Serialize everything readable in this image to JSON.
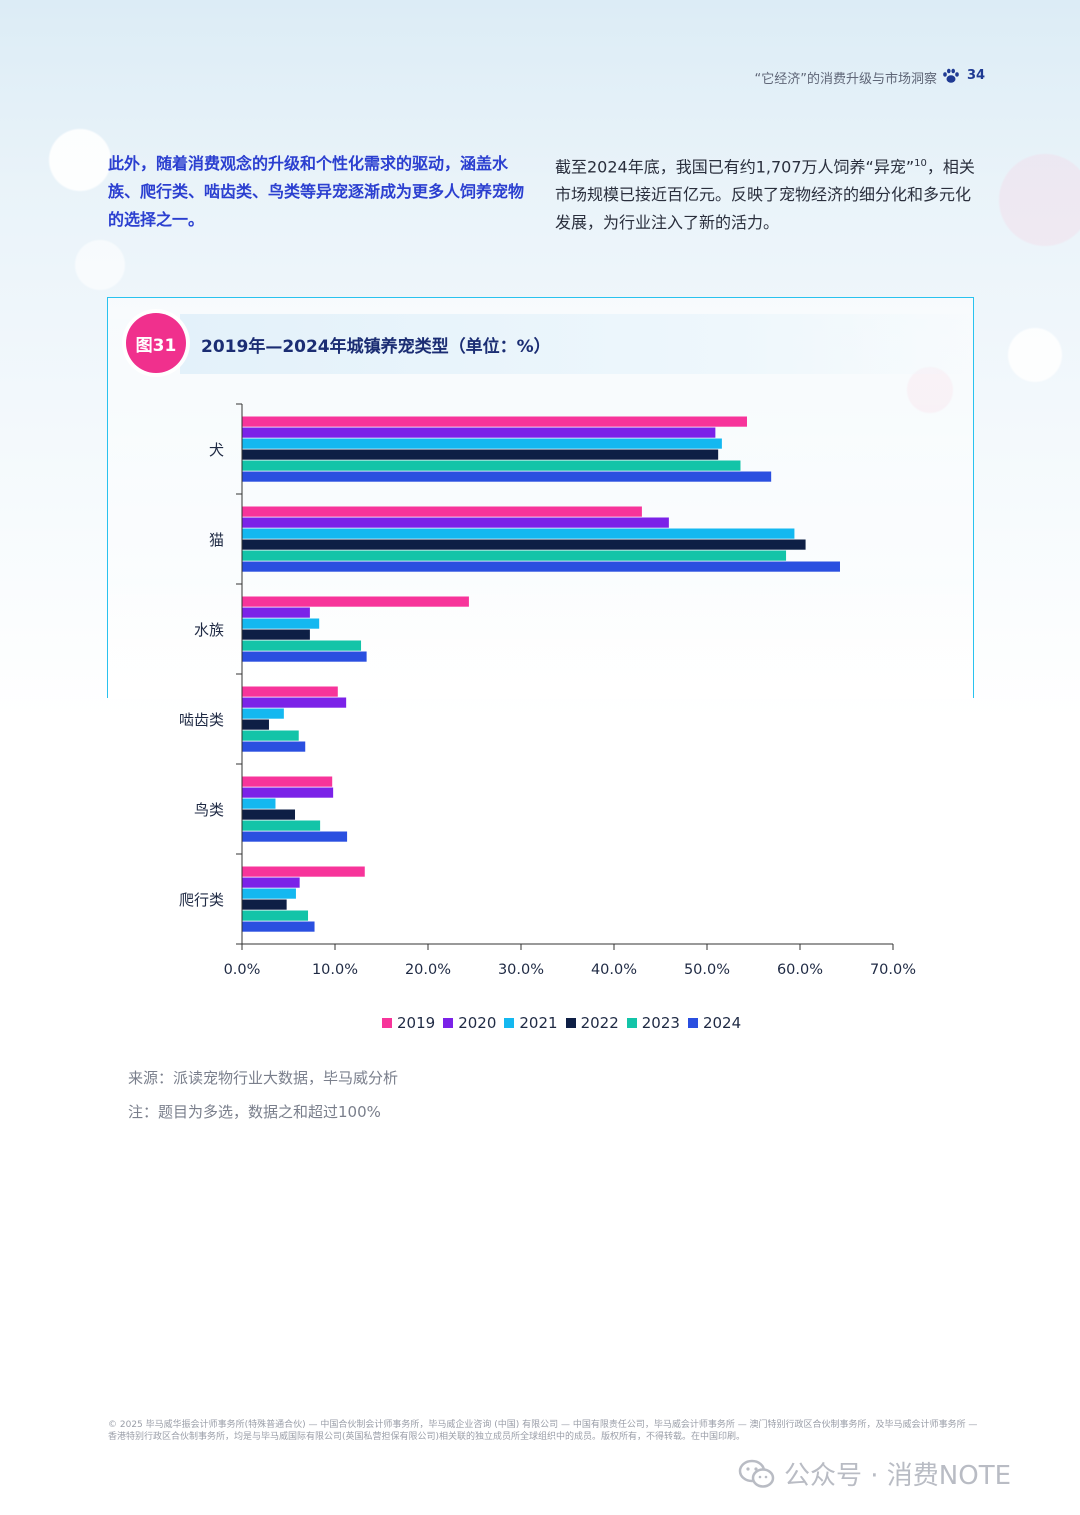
{
  "header": {
    "title": "“它经济”的消费升级与市场洞察",
    "page_number": "34"
  },
  "intro": {
    "left": "此外，随着消费观念的升级和个性化需求的驱动，涵盖水族、爬行类、啮齿类、鸟类等异宠逐渐成为更多人饲养宠物的选择之一。",
    "right_text": "截至2024年底，我国已有约1,707万人饲养“异宠”",
    "right_sup": "10",
    "right_text2": "，相关市场规模已接近百亿元。反映了宠物经济的细分化和多元化发展，为行业注入了新的活力。"
  },
  "figure": {
    "badge": "图31",
    "title": "2019年—2024年城镇养宠类型（单位：%）"
  },
  "chart_data": {
    "type": "bar",
    "orientation": "horizontal",
    "title": "2019年—2024年城镇养宠类型（单位：%）",
    "categories": [
      "犬",
      "猫",
      "水族",
      "啮齿类",
      "鸟类",
      "爬行类"
    ],
    "series": [
      {
        "name": "2019",
        "color": "#f7349a",
        "values": [
          54.3,
          43.0,
          24.4,
          10.3,
          9.7,
          13.2
        ]
      },
      {
        "name": "2020",
        "color": "#7b22e8",
        "values": [
          50.9,
          45.9,
          7.3,
          11.2,
          9.8,
          6.2
        ]
      },
      {
        "name": "2021",
        "color": "#14b8f0",
        "values": [
          51.6,
          59.4,
          8.3,
          4.5,
          3.6,
          5.8
        ]
      },
      {
        "name": "2022",
        "color": "#0e1f45",
        "values": [
          51.2,
          60.6,
          7.3,
          2.9,
          5.7,
          4.8
        ]
      },
      {
        "name": "2023",
        "color": "#13c4a8",
        "values": [
          53.6,
          58.5,
          12.8,
          6.1,
          8.4,
          7.1
        ]
      },
      {
        "name": "2024",
        "color": "#2a4fe0",
        "values": [
          56.9,
          64.3,
          13.4,
          6.8,
          11.3,
          7.8
        ]
      }
    ],
    "x_ticks": [
      "0.0%",
      "10.0%",
      "20.0%",
      "30.0%",
      "40.0%",
      "50.0%",
      "60.0%",
      "70.0%"
    ],
    "xlim": [
      0,
      70
    ],
    "legend": "bottom"
  },
  "source": "来源：派读宠物行业大数据，毕马威分析",
  "note": "注：题目为多选，数据之和超过100%",
  "footer": {
    "legal": "© 2025 毕马威华振会计师事务所(特殊普通合伙) — 中国合伙制会计师事务所，毕马威企业咨询 (中国) 有限公司 — 中国有限责任公司，毕马威会计师事务所 — 澳门特别行政区合伙制事务所，及毕马威会计师事务所 — 香港特别行政区合伙制事务所，均是与毕马威国际有限公司(英国私营担保有限公司)相关联的独立成员所全球组织中的成员。版权所有，不得转载。在中国印刷。",
    "watermark": "公众号 · 消费NOTE"
  }
}
